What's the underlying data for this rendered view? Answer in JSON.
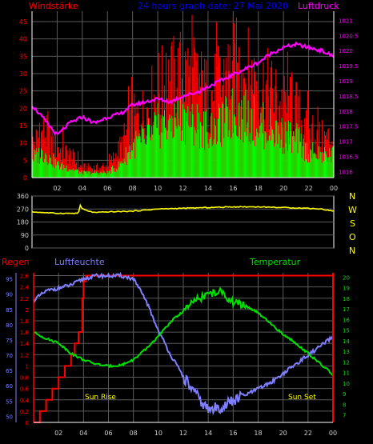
{
  "header": {
    "left_title": "Windstärke",
    "center_title": "24 hours graph date: 27 Mai 2020",
    "right_title": "Luftdruck"
  },
  "bottom_header": {
    "rain": "Regen",
    "humidity": "Luftfeuchte",
    "temperature": "Temperatur"
  },
  "direction_labels": [
    "N",
    "W",
    "S",
    "O",
    "N"
  ],
  "sun": {
    "rise": "Sun Rise",
    "set": "Sun Set"
  },
  "colors": {
    "grid": "#5a5a5a",
    "axis": "#ffffff",
    "wind_gust": "#ff0000",
    "wind_avg": "#00ff00",
    "pressure": "#ff00ff",
    "direction": "#ffff00",
    "rain": "#ff0000",
    "humidity": "#7f7fff",
    "temperature": "#00e000",
    "sun_label": "#ffff00",
    "left_title": "#ff0000",
    "center_title": "#0000ff",
    "right_title": "#ff00ff",
    "humidity_title": "#7f7fff",
    "temp_title": "#00e000",
    "tick_text": "#000000"
  },
  "chart_data": [
    {
      "type": "bar",
      "name": "wind",
      "x_ticks": [
        "02",
        "04",
        "06",
        "08",
        "10",
        "12",
        "14",
        "16",
        "18",
        "20",
        "22",
        "00"
      ],
      "y_left_ticks": [
        "0",
        "5",
        "10",
        "15",
        "20",
        "25",
        "30",
        "35",
        "40",
        "45"
      ],
      "y_right_ticks": [
        "1016",
        "1016.5",
        "1017",
        "1017.5",
        "1018",
        "1018.5",
        "1019",
        "1019.5",
        "1020",
        "1020.5",
        "1021"
      ],
      "ylim": [
        0,
        48
      ],
      "y2lim": [
        1015.8,
        1021.3
      ],
      "xlim": [
        0,
        24
      ],
      "series": [
        {
          "role": "gust",
          "x": [
            0,
            1,
            2,
            3,
            4,
            5,
            6,
            7,
            8,
            9,
            10,
            11,
            12,
            13,
            14,
            15,
            16,
            17,
            18,
            19,
            20,
            21,
            22,
            23,
            24
          ],
          "values": [
            10,
            14,
            9,
            7,
            3,
            3,
            3,
            9,
            17,
            20,
            27,
            29,
            32,
            30,
            25,
            28,
            34,
            32,
            29,
            26,
            22,
            21,
            13,
            12,
            12
          ]
        },
        {
          "role": "average",
          "x": [
            0,
            1,
            2,
            3,
            4,
            5,
            6,
            7,
            8,
            9,
            10,
            11,
            12,
            13,
            14,
            15,
            16,
            17,
            18,
            19,
            20,
            21,
            22,
            23,
            24
          ],
          "values": [
            6,
            8,
            4,
            3,
            1.5,
            1.5,
            1.5,
            4,
            10,
            12,
            16,
            17,
            19,
            17,
            15,
            16,
            20,
            19,
            17,
            15,
            13,
            12,
            8,
            7,
            7
          ]
        },
        {
          "role": "pressure",
          "x": [
            0,
            1,
            2,
            3,
            4,
            5,
            6,
            7,
            8,
            9,
            10,
            11,
            12,
            13,
            14,
            15,
            16,
            17,
            18,
            19,
            20,
            21,
            22,
            23,
            24
          ],
          "values": [
            1018.2,
            1017.7,
            1017.2,
            1017.6,
            1017.8,
            1017.6,
            1017.8,
            1017.9,
            1018.2,
            1018.3,
            1018.4,
            1018.3,
            1018.5,
            1018.6,
            1018.8,
            1019,
            1019.2,
            1019.4,
            1019.6,
            1019.9,
            1020.1,
            1020.2,
            1020.1,
            1020,
            1019.8
          ]
        }
      ]
    },
    {
      "type": "line",
      "name": "wind-direction",
      "x_ticks": [],
      "y_ticks": [
        "0",
        "90",
        "180",
        "270",
        "360"
      ],
      "ylim": [
        0,
        360
      ],
      "xlim": [
        0,
        24
      ],
      "x": [
        0,
        2,
        3.7,
        3.8,
        4,
        4.5,
        5,
        6,
        8,
        10,
        12,
        14,
        16,
        18,
        20,
        22,
        23,
        24
      ],
      "values": [
        250,
        240,
        240,
        300,
        270,
        255,
        245,
        250,
        255,
        270,
        275,
        280,
        285,
        285,
        280,
        275,
        270,
        255
      ]
    },
    {
      "type": "line",
      "name": "climate",
      "x_ticks": [
        "02",
        "04",
        "06",
        "08",
        "10",
        "12",
        "14",
        "16",
        "18",
        "20",
        "22",
        "00"
      ],
      "y_rain_ticks": [
        "0",
        "0.2",
        "0.4",
        "0.6",
        "0.8",
        "1",
        "1.2",
        "1.4",
        "1.6",
        "1.8",
        "2",
        "2.2",
        "2.4",
        "2.6"
      ],
      "y_humidity_ticks": [
        "50",
        "55",
        "60",
        "65",
        "70",
        "75",
        "80",
        "85",
        "90",
        "95"
      ],
      "y_temp_ticks": [
        "7",
        "8",
        "9",
        "10",
        "11",
        "12",
        "13",
        "14",
        "15",
        "16",
        "17",
        "18",
        "19",
        "20"
      ],
      "rain_lim": [
        0,
        2.65
      ],
      "humidity_lim": [
        48,
        97
      ],
      "temp_lim": [
        6.3,
        20.4
      ],
      "xlim": [
        0,
        24
      ],
      "series": [
        {
          "name": "Regen",
          "x": [
            0,
            0.5,
            1,
            1.5,
            2,
            2.5,
            3,
            3.3,
            3.6,
            3.9,
            4,
            4.2,
            24
          ],
          "values": [
            0,
            0.2,
            0.4,
            0.6,
            0.8,
            1,
            1.2,
            1.4,
            1.6,
            2.2,
            2.5,
            2.6,
            2.6
          ]
        },
        {
          "name": "Luftfeuchte",
          "x": [
            0,
            1,
            2,
            3,
            4,
            5,
            6,
            7,
            8,
            9,
            10,
            11,
            12,
            13,
            14,
            15,
            16,
            17,
            18,
            19,
            20,
            21,
            22,
            23,
            24
          ],
          "values": [
            88,
            91,
            92,
            93,
            95,
            96,
            96,
            96,
            95,
            88,
            78,
            70,
            63,
            57,
            52,
            53,
            55,
            57,
            59,
            61,
            64,
            67,
            70,
            73,
            76
          ]
        },
        {
          "name": "Temperatur",
          "x": [
            0,
            1,
            2,
            3,
            4,
            5,
            6,
            7,
            8,
            9,
            10,
            11,
            12,
            13,
            14,
            15,
            16,
            17,
            18,
            19,
            20,
            21,
            22,
            23,
            24
          ],
          "values": [
            14.8,
            14.2,
            13.8,
            12.8,
            12.2,
            11.8,
            11.6,
            11.7,
            12.2,
            13.2,
            14.4,
            15.8,
            16.8,
            17.8,
            18.4,
            18.6,
            17.6,
            17.3,
            16.6,
            15.6,
            14.6,
            13.8,
            12.8,
            11.8,
            10.8
          ]
        }
      ]
    }
  ]
}
